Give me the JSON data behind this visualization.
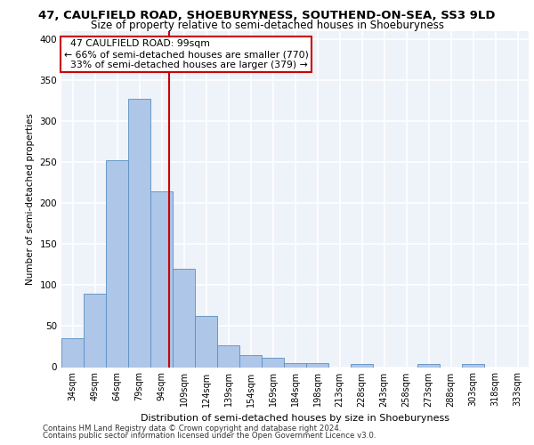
{
  "title_line1": "47, CAULFIELD ROAD, SHOEBURYNESS, SOUTHEND-ON-SEA, SS3 9LD",
  "title_line2": "Size of property relative to semi-detached houses in Shoeburyness",
  "xlabel": "Distribution of semi-detached houses by size in Shoeburyness",
  "ylabel": "Number of semi-detached properties",
  "categories": [
    "34sqm",
    "49sqm",
    "64sqm",
    "79sqm",
    "94sqm",
    "109sqm",
    "124sqm",
    "139sqm",
    "154sqm",
    "169sqm",
    "184sqm",
    "198sqm",
    "213sqm",
    "228sqm",
    "243sqm",
    "258sqm",
    "273sqm",
    "288sqm",
    "303sqm",
    "318sqm",
    "333sqm"
  ],
  "values": [
    35,
    90,
    253,
    328,
    215,
    120,
    62,
    27,
    15,
    11,
    5,
    5,
    0,
    4,
    0,
    0,
    4,
    0,
    4,
    0,
    0
  ],
  "bar_color": "#aec6e8",
  "bar_edge_color": "#5a8fc2",
  "property_label": "47 CAULFIELD ROAD: 99sqm",
  "smaller_pct": 66,
  "smaller_count": 770,
  "larger_pct": 33,
  "larger_count": 379,
  "annotation_box_color": "#cc0000",
  "vline_x": 4.333,
  "ylim": [
    0,
    410
  ],
  "yticks": [
    0,
    50,
    100,
    150,
    200,
    250,
    300,
    350,
    400
  ],
  "footnote1": "Contains HM Land Registry data © Crown copyright and database right 2024.",
  "footnote2": "Contains public sector information licensed under the Open Government Licence v3.0.",
  "bg_color": "#eef2f9",
  "grid_color": "#ffffff",
  "title1_fontsize": 9.5,
  "title2_fontsize": 8.5,
  "annot_fontsize": 7.8,
  "ylabel_fontsize": 7.5,
  "xlabel_fontsize": 8.0,
  "tick_fontsize": 7.0,
  "ytick_fontsize": 7.5,
  "footnote_fontsize": 6.2
}
